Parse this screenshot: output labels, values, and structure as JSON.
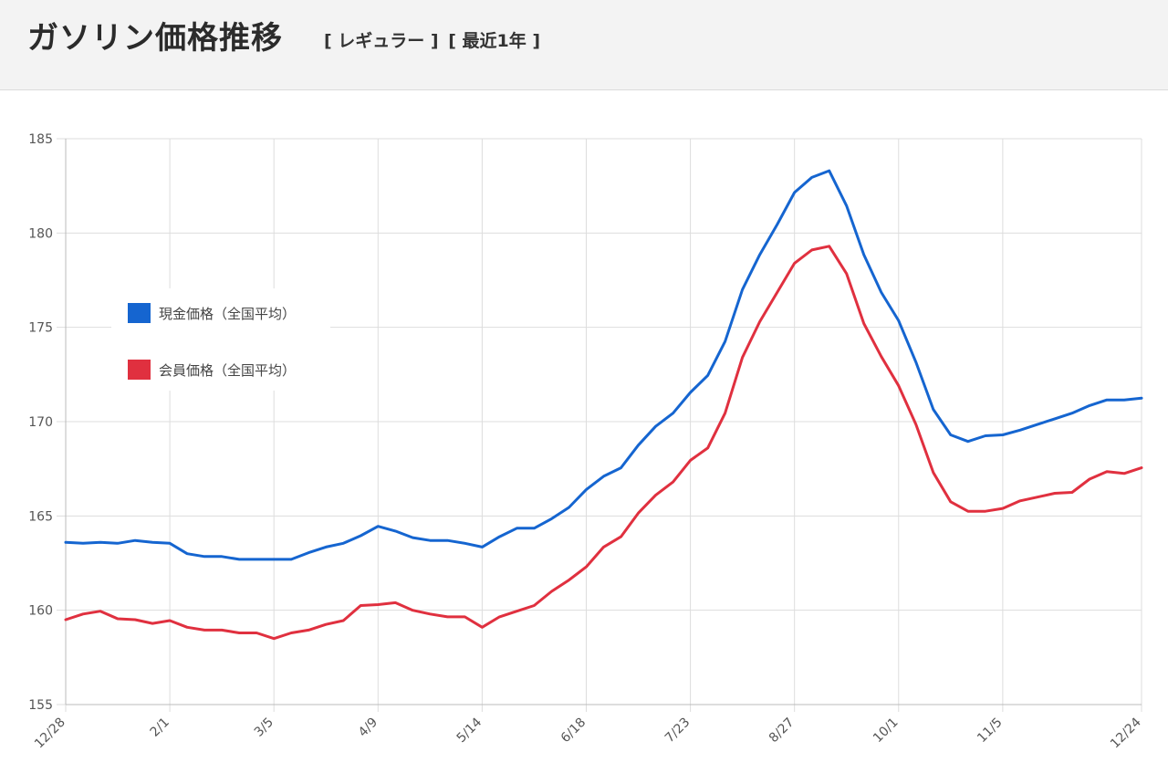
{
  "header": {
    "title": "ガソリン価格推移",
    "filter_type": "[ レギュラー ]",
    "filter_period": "[ 最近1年 ]"
  },
  "colors": {
    "cash": "#1565d0",
    "member": "#e0303f"
  },
  "chart_data": {
    "type": "line",
    "ylim": [
      155,
      185
    ],
    "yticks": [
      155,
      160,
      165,
      170,
      175,
      180,
      185
    ],
    "xtick_labels": [
      "12/28",
      "2/1",
      "3/5",
      "4/9",
      "5/14",
      "6/18",
      "7/23",
      "8/27",
      "10/1",
      "11/5",
      "12/24"
    ],
    "xtick_positions": [
      0,
      6,
      12,
      18,
      24,
      30,
      36,
      42,
      48,
      54,
      62
    ],
    "series": [
      {
        "name": "現金価格（全国平均）",
        "color": "#1565d0",
        "values": [
          163.6,
          163.55,
          163.6,
          163.55,
          163.7,
          163.6,
          163.55,
          163.0,
          162.85,
          162.85,
          162.7,
          162.7,
          162.7,
          162.7,
          163.05,
          163.35,
          163.55,
          163.95,
          164.45,
          164.2,
          163.85,
          163.7,
          163.7,
          163.55,
          163.35,
          163.9,
          164.35,
          164.35,
          164.85,
          165.45,
          166.4,
          167.1,
          167.55,
          168.75,
          169.75,
          170.45,
          171.55,
          172.45,
          174.25,
          177.0,
          178.85,
          180.45,
          182.15,
          182.95,
          183.3,
          181.45,
          178.85,
          176.85,
          175.35,
          173.15,
          170.65,
          169.3,
          168.95,
          169.25,
          169.3,
          169.55,
          169.85,
          170.15,
          170.45,
          170.85,
          171.15,
          171.15,
          171.25
        ]
      },
      {
        "name": "会員価格（全国平均）",
        "color": "#e0303f",
        "values": [
          159.5,
          159.8,
          159.95,
          159.55,
          159.5,
          159.3,
          159.45,
          159.1,
          158.95,
          158.95,
          158.8,
          158.8,
          158.5,
          158.8,
          158.95,
          159.25,
          159.45,
          160.25,
          160.3,
          160.4,
          160.0,
          159.8,
          159.65,
          159.65,
          159.1,
          159.65,
          159.95,
          160.25,
          161.0,
          161.6,
          162.3,
          163.35,
          163.9,
          165.15,
          166.1,
          166.8,
          167.95,
          168.6,
          170.45,
          173.4,
          175.3,
          176.85,
          178.4,
          179.1,
          179.3,
          177.85,
          175.2,
          173.45,
          171.9,
          169.85,
          167.3,
          165.75,
          165.25,
          165.25,
          165.4,
          165.8,
          166.0,
          166.2,
          166.25,
          166.95,
          167.35,
          167.25,
          167.55
        ]
      }
    ]
  }
}
